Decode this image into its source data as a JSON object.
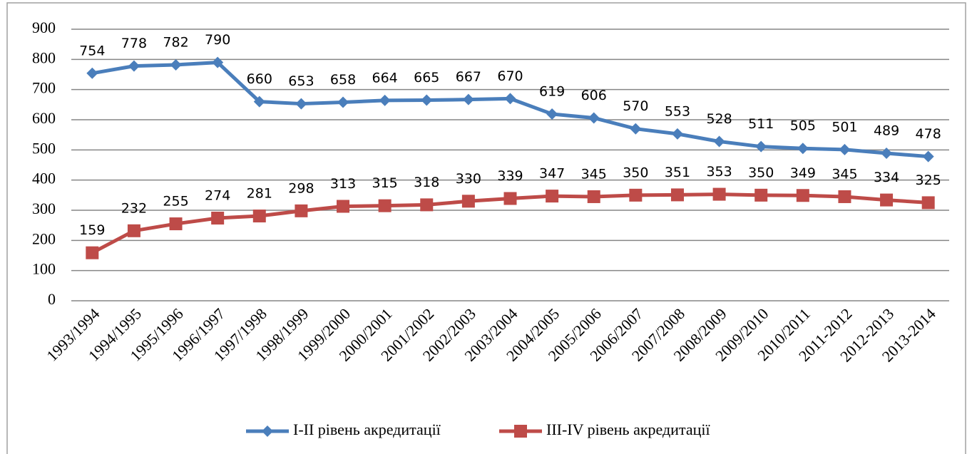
{
  "chart_data": {
    "type": "line",
    "categories": [
      "1993/1994",
      "1994/1995",
      "1995/1996",
      "1996/1997",
      "1997/1998",
      "1998/1999",
      "1999/2000",
      "2000/2001",
      "2001/2002",
      "2002/2003",
      "2003/2004",
      "2004/2005",
      "2005/2006",
      "2006/2007",
      "2007/2008",
      "2008/2009",
      "2009/2010",
      "2010/2011",
      "2011-2012",
      "2012-2013",
      "2013-2014"
    ],
    "series": [
      {
        "name": "I-II рівень акредитації",
        "color": "#4a7ebb",
        "marker": "diamond",
        "values": [
          754,
          778,
          782,
          790,
          660,
          653,
          658,
          664,
          665,
          667,
          670,
          619,
          606,
          570,
          553,
          528,
          511,
          505,
          501,
          489,
          478
        ]
      },
      {
        "name": "III-IV рівень акредитації",
        "color": "#be4b48",
        "marker": "square",
        "values": [
          159,
          232,
          255,
          274,
          281,
          298,
          313,
          315,
          318,
          330,
          339,
          347,
          345,
          350,
          351,
          353,
          350,
          349,
          345,
          334,
          325
        ]
      }
    ],
    "ylim": [
      0,
      900
    ],
    "yticks": [
      0,
      100,
      200,
      300,
      400,
      500,
      600,
      700,
      800,
      900
    ],
    "grid": true,
    "legend": "bottom"
  }
}
